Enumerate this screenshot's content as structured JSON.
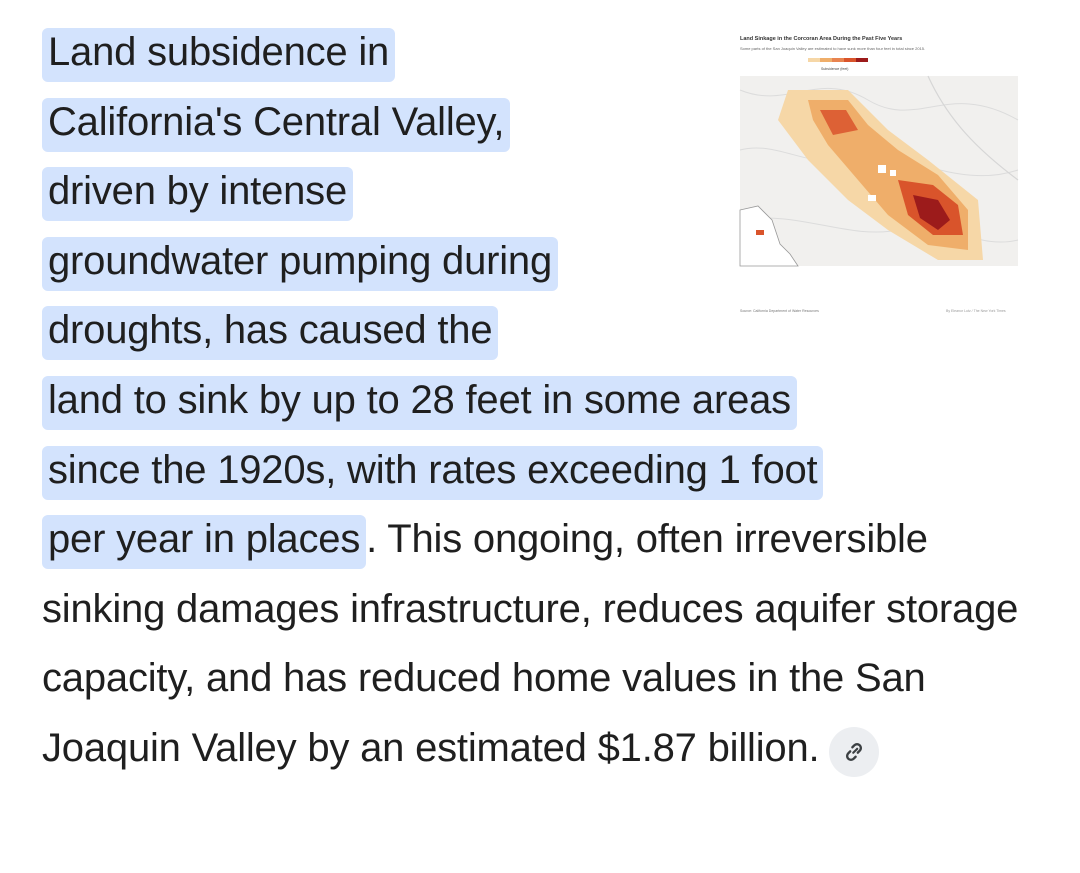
{
  "answer": {
    "highlight_lines": [
      "Land subsidence in",
      "California's Central Valley,",
      "driven by intense",
      "groundwater pumping during",
      "droughts, has caused the",
      "land to sink by up to 28 feet in some areas",
      "since the 1920s, with rates exceeding 1 foot",
      "per year in places"
    ],
    "rest": ". This ongoing, often irreversible sinking damages infrastructure, reduces aquifer storage capacity, and has reduced home values in the San Joaquin Valley by an estimated $1.87 billion.",
    "link_icon": "link-icon"
  },
  "thumbnail": {
    "title": "Land Sinkage in the Corcoran Area During the Past Five Years",
    "subtitle": "Some parts of the San Joaquin Valley are estimated to have sunk more than four feet in total since 2015.",
    "legend_label": "Subsidence (feet)",
    "source": "Source: California Department of Water Resources",
    "credit": "By Eleanor Lutz / The New York Times",
    "colors": {
      "light": "#f6d7a7",
      "mid": "#efae6a",
      "dark": "#d9542b",
      "darkest": "#9c1b1b"
    }
  }
}
